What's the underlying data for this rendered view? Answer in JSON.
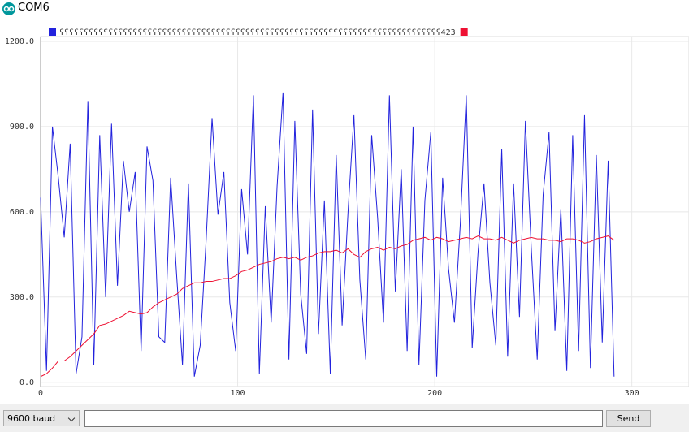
{
  "window": {
    "title": "COM6"
  },
  "chart_data": {
    "type": "line",
    "x": [
      0,
      3,
      6,
      9,
      12,
      15,
      18,
      21,
      24,
      27,
      30,
      33,
      36,
      39,
      42,
      45,
      48,
      51,
      54,
      57,
      60,
      63,
      66,
      69,
      72,
      75,
      78,
      81,
      84,
      87,
      90,
      93,
      96,
      99,
      102,
      105,
      108,
      111,
      114,
      117,
      120,
      123,
      126,
      129,
      132,
      135,
      138,
      141,
      144,
      147,
      150,
      153,
      156,
      159,
      162,
      165,
      168,
      171,
      174,
      177,
      180,
      183,
      186,
      189,
      192,
      195,
      198,
      201,
      204,
      207,
      210,
      213,
      216,
      219,
      222,
      225,
      228,
      231,
      234,
      237,
      240,
      243,
      246,
      249,
      252,
      255,
      258,
      261,
      264,
      267,
      270,
      273,
      276,
      279,
      282,
      285,
      288,
      291
    ],
    "series": [
      {
        "name": "ʕʕʕʕʕʕʕʕʕʕʕʕʕʕʕʕʕʕʕʕʕʕʕʕʕʕʕʕʕʕʕʕʕʕʕʕʕʕʕʕʕʕʕʕʕʕʕʕʕʕʕʕʕʕʕʕʕʕʕʕʕʕʕʕʕʕʕʕʕʕʕʕʕʕʕʕʕʕ423",
        "color": "#2222dd",
        "values": [
          650,
          40,
          900,
          720,
          510,
          840,
          30,
          160,
          990,
          60,
          870,
          300,
          910,
          340,
          780,
          600,
          740,
          110,
          830,
          710,
          160,
          140,
          720,
          380,
          60,
          700,
          20,
          130,
          500,
          930,
          590,
          740,
          280,
          110,
          680,
          450,
          1010,
          30,
          620,
          210,
          690,
          1020,
          80,
          920,
          310,
          100,
          960,
          170,
          640,
          30,
          800,
          200,
          600,
          940,
          360,
          80,
          870,
          580,
          210,
          1010,
          320,
          750,
          110,
          900,
          60,
          640,
          880,
          20,
          720,
          400,
          210,
          560,
          1010,
          120,
          460,
          700,
          350,
          130,
          820,
          90,
          700,
          230,
          920,
          470,
          80,
          660,
          880,
          180,
          610,
          40,
          870,
          110,
          940,
          50,
          800,
          140,
          780,
          20
        ]
      },
      {
        "color": "#ee1133",
        "values": [
          20,
          30,
          50,
          75,
          75,
          90,
          110,
          130,
          150,
          170,
          200,
          205,
          215,
          225,
          235,
          250,
          245,
          240,
          245,
          265,
          280,
          290,
          300,
          310,
          330,
          340,
          350,
          350,
          355,
          355,
          360,
          365,
          365,
          375,
          390,
          395,
          405,
          415,
          420,
          425,
          435,
          440,
          435,
          440,
          430,
          440,
          445,
          455,
          460,
          460,
          465,
          455,
          470,
          450,
          440,
          460,
          470,
          475,
          465,
          475,
          470,
          480,
          485,
          500,
          505,
          510,
          500,
          510,
          505,
          495,
          500,
          505,
          510,
          505,
          515,
          505,
          505,
          500,
          510,
          500,
          490,
          500,
          505,
          510,
          505,
          505,
          500,
          500,
          495,
          505,
          505,
          500,
          490,
          495,
          505,
          510,
          515,
          500
        ]
      }
    ],
    "xlim": [
      0,
      329
    ],
    "ylim": [
      -15,
      1217
    ],
    "xticks": [
      0,
      100,
      200,
      300
    ],
    "yticks": [
      {
        "value": 0,
        "label": "0.0"
      },
      {
        "value": 300,
        "label": "300.0"
      },
      {
        "value": 600,
        "label": "600.0"
      },
      {
        "value": 900,
        "label": "900.0"
      },
      {
        "value": 1200,
        "label": "1200.0"
      }
    ],
    "grid": true
  },
  "controls": {
    "baud": "9600 baud",
    "send": "Send"
  }
}
